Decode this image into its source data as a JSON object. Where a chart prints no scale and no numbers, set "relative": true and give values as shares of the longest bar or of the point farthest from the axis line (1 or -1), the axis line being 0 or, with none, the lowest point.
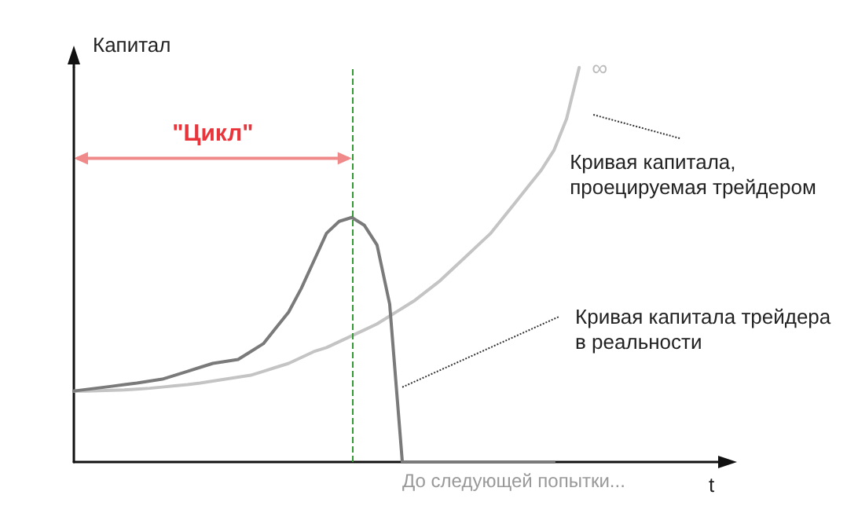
{
  "chart_data": {
    "type": "line",
    "relative": true,
    "ylabel": "Капитал",
    "xlabel": "t",
    "grid": false,
    "line_style": "solid",
    "categories": [
      null,
      null,
      null,
      null,
      null,
      null,
      null,
      null,
      null,
      null,
      null,
      null,
      null,
      null,
      null,
      null,
      null,
      null,
      null,
      null,
      null,
      null,
      null,
      null,
      null,
      null,
      null,
      null,
      null,
      null,
      null,
      null,
      null,
      null,
      null,
      null,
      null,
      null,
      null,
      null,
      null,
      null,
      null,
      null,
      null,
      null,
      null,
      null,
      null,
      null,
      null,
      null
    ],
    "series": [
      {
        "color": "#c4c4c4",
        "values": [
          0.18,
          0.18,
          0.181,
          0.182,
          0.183,
          0.185,
          0.187,
          0.19,
          0.193,
          0.196,
          0.2,
          0.205,
          0.21,
          0.215,
          0.22,
          0.23,
          0.24,
          0.25,
          0.265,
          0.28,
          0.29,
          0.305,
          0.32,
          0.335,
          0.35,
          0.37,
          0.39,
          0.41,
          0.435,
          0.46,
          0.49,
          0.52,
          0.55,
          0.58,
          0.62,
          0.66,
          0.7,
          0.74,
          0.79,
          0.87,
          1.0,
          null,
          null,
          null,
          null,
          null,
          null,
          null,
          null,
          null,
          null,
          null
        ]
      },
      {
        "color": "#7a7a7a",
        "values": [
          0.18,
          0.184,
          0.188,
          0.192,
          0.196,
          0.2,
          0.205,
          0.21,
          0.22,
          0.23,
          0.24,
          0.25,
          0.255,
          0.26,
          0.28,
          0.3,
          0.34,
          0.38,
          0.44,
          0.51,
          0.58,
          0.61,
          0.62,
          0.6,
          0.55,
          0.4,
          0,
          0,
          0,
          0,
          0,
          0,
          0,
          0,
          0,
          0,
          0,
          0,
          0,
          null,
          null,
          null,
          null,
          null,
          null,
          null,
          null,
          null,
          null,
          null,
          null,
          null
        ]
      }
    ],
    "ref_lines": [
      {
        "axis": "x",
        "color": "#339933",
        "line_style": "dashed"
      }
    ],
    "annotations": [
      "\"Цикл\"",
      "Кривая капитала,\nпроецируемая трейдером",
      "Кривая капитала трейдера\nв реальности",
      "∞",
      "До следующей попытки..."
    ]
  }
}
